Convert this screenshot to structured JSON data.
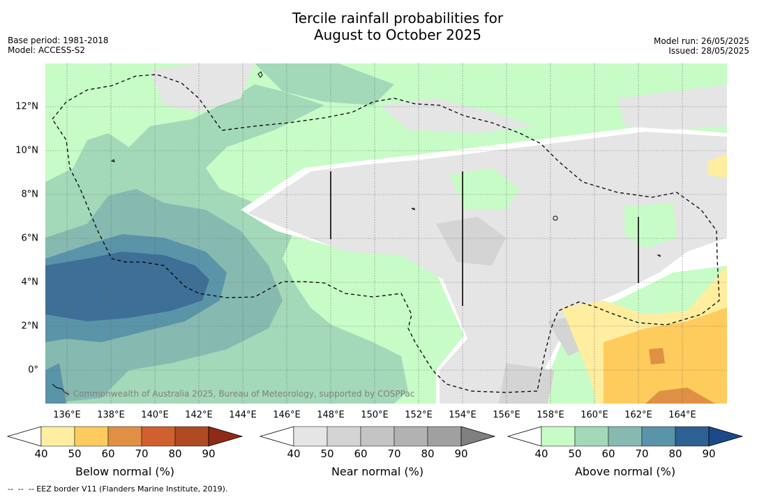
{
  "title_line1": "Tercile rainfall probabilities for",
  "title_line2": "August to October 2025",
  "base_period": "Base period: 1981-2018",
  "model": "Model: ACCESS-S2",
  "model_run": "Model run: 26/05/2025",
  "issued": "Issued: 28/05/2025",
  "credit": "© Commonwealth of Australia 2025, Bureau of Meteorology, supported by COSPPac",
  "footnote": "--  --  -- EEZ border V11 (Flanders Marine Institute, 2019).",
  "lat_labels": [
    "12°N",
    "10°N",
    "8°N",
    "6°N",
    "4°N",
    "2°N",
    "0°"
  ],
  "lon_labels": [
    "136°E",
    "138°E",
    "140°E",
    "142°E",
    "144°E",
    "146°E",
    "148°E",
    "150°E",
    "152°E",
    "154°E",
    "156°E",
    "158°E",
    "160°E",
    "162°E",
    "164°E"
  ],
  "colorbars": [
    {
      "label": "Below normal (%)",
      "ticks": [
        "40",
        "50",
        "60",
        "70",
        "80",
        "90"
      ],
      "colors": [
        "#ffffff",
        "#ffeda0",
        "#fecc5c",
        "#e09045",
        "#d06030",
        "#b04a25",
        "#8f2a15"
      ]
    },
    {
      "label": "Near normal (%)",
      "ticks": [
        "40",
        "50",
        "60",
        "70",
        "80",
        "90"
      ],
      "colors": [
        "#ffffff",
        "#e5e5e5",
        "#d4d4d4",
        "#c4c4c4",
        "#b2b2b2",
        "#a0a0a0",
        "#808080"
      ]
    },
    {
      "label": "Above normal (%)",
      "ticks": [
        "40",
        "50",
        "60",
        "70",
        "80",
        "90"
      ],
      "colors": [
        "#ffffff",
        "#c7fcc7",
        "#a3d9b8",
        "#86bab0",
        "#5a94a8",
        "#2e6093",
        "#1a4a88"
      ]
    }
  ]
}
